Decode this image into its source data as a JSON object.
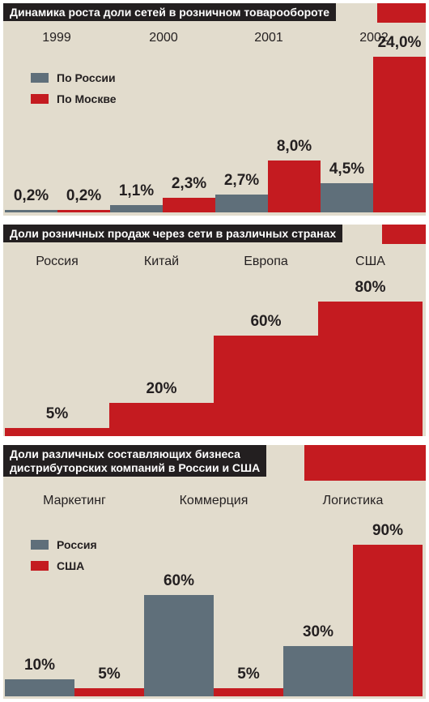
{
  "colors": {
    "russia": "#5f6f7a",
    "moscow": "#c41b20",
    "red": "#c41b20",
    "usa": "#c41b20",
    "panel": "#e2dccd"
  },
  "chart_data": [
    {
      "type": "bar",
      "title": "Динамика роста доли сетей в розничном товарообороте",
      "categories": [
        "1999",
        "2000",
        "2001",
        "2002"
      ],
      "series": [
        {
          "name": "По России",
          "values": [
            0.2,
            1.1,
            2.7,
            4.5
          ],
          "labels": [
            "0,2%",
            "1,1%",
            "2,7%",
            "4,5%"
          ]
        },
        {
          "name": "По Москве",
          "values": [
            0.2,
            2.3,
            8.0,
            24.0
          ],
          "labels": [
            "0,2%",
            "2,3%",
            "8,0%",
            "24,0%"
          ]
        }
      ],
      "ylim": [
        0,
        24
      ],
      "legend": "top-left"
    },
    {
      "type": "bar",
      "title": "Доли розничных продаж через сети в различных странах",
      "categories": [
        "Россия",
        "Китай",
        "Европа",
        "США"
      ],
      "values": [
        5,
        20,
        60,
        80
      ],
      "labels": [
        "5%",
        "20%",
        "60%",
        "80%"
      ],
      "ylim": [
        0,
        80
      ]
    },
    {
      "type": "bar",
      "title": "Доли различных составляющих бизнеса дистрибуторских компаний в России и США",
      "title_lines": [
        "Доли различных составляющих бизнеса",
        "дистрибуторских компаний в России и США"
      ],
      "categories": [
        "Маркетинг",
        "Коммерция",
        "Логистика"
      ],
      "series": [
        {
          "name": "Россия",
          "values": [
            10,
            60,
            30
          ],
          "labels": [
            "10%",
            "60%",
            "30%"
          ]
        },
        {
          "name": "США",
          "values": [
            5,
            5,
            90
          ],
          "labels": [
            "5%",
            "5%",
            "90%"
          ]
        }
      ],
      "ylim": [
        0,
        90
      ],
      "legend": "top-left"
    }
  ]
}
